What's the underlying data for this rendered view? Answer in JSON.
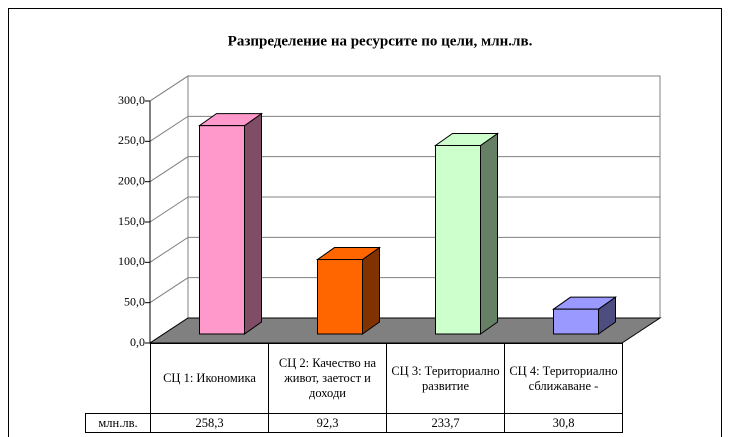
{
  "chart_data": {
    "type": "bar3d",
    "title": "Разпределение на ресурсите по цели, млн.лв.",
    "categories": [
      "СЦ 1: Икономика",
      "СЦ 2: Качество на живот, заетост и доходи",
      "СЦ 3: Териториално развитие",
      "СЦ 4: Териториално сближаване -"
    ],
    "series": [
      {
        "name": "млн.лв.",
        "colors": [
          "#ff99cc",
          "#ff6600",
          "#ccffcc",
          "#9999ff"
        ],
        "values": [
          258.3,
          92.3,
          233.7,
          30.8
        ],
        "value_labels": [
          "258,3",
          "92,3",
          "233,7",
          "30,8"
        ]
      }
    ],
    "ylim": [
      0,
      300
    ],
    "yticks": [
      {
        "value": 0,
        "label": "0,0"
      },
      {
        "value": 50,
        "label": "50,0"
      },
      {
        "value": 100,
        "label": "100,0"
      },
      {
        "value": 150,
        "label": "150,0"
      },
      {
        "value": 200,
        "label": "200,0"
      },
      {
        "value": 250,
        "label": "250,0"
      },
      {
        "value": 300,
        "label": "300,0"
      }
    ],
    "grid": true
  }
}
